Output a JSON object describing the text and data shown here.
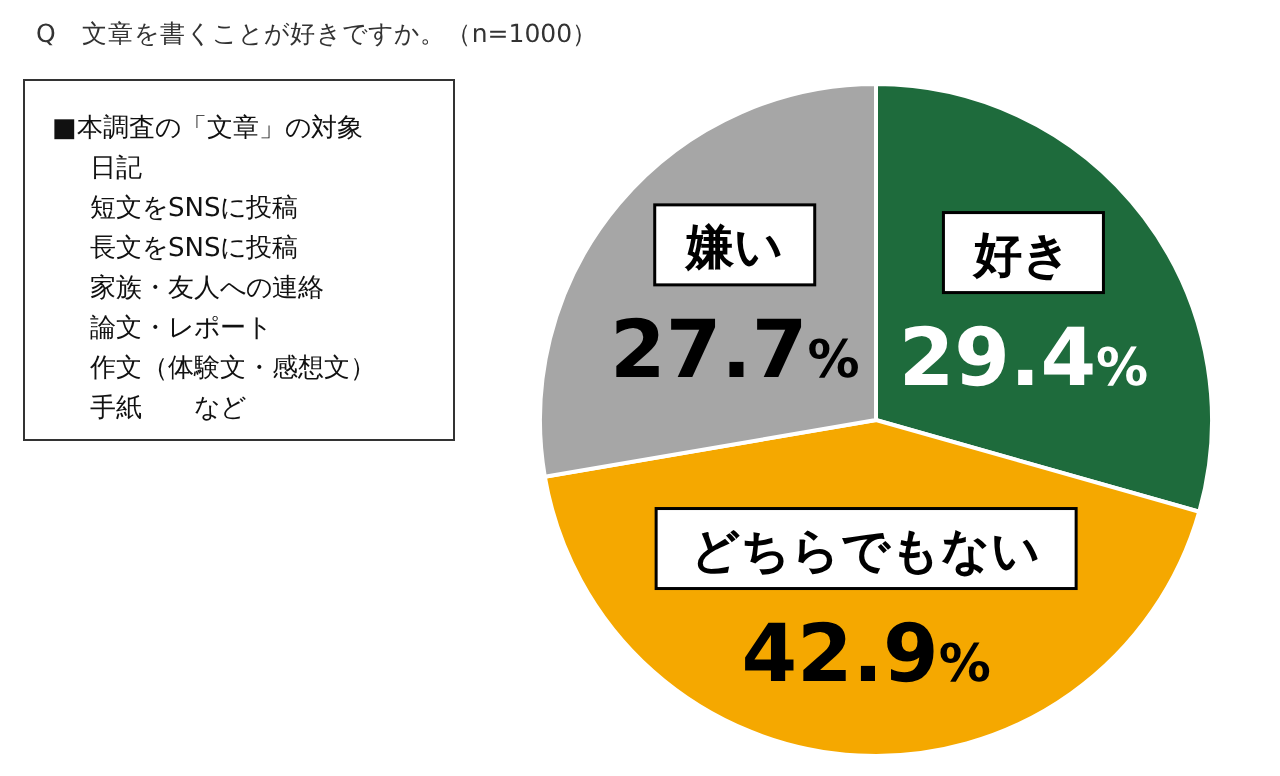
{
  "chart_data": {
    "type": "pie",
    "title": "Q　文章を書くことが好きですか。（n=1000）",
    "categories": [
      "好き",
      "どちらでもない",
      "嫌い"
    ],
    "values": [
      29.4,
      42.9,
      27.7
    ],
    "colors": [
      "#1e6b3c",
      "#f5a800",
      "#a6a6a6"
    ],
    "value_labels": [
      "29.4%",
      "42.9%",
      "27.7%"
    ],
    "annotations": [
      "■本調査の「文章」の対象",
      "日記",
      "短文をSNSに投稿",
      "長文をSNSに投稿",
      "家族・友人への連絡",
      "論文・レポート",
      "作文（体験文・感想文）",
      "手紙　　など"
    ]
  }
}
